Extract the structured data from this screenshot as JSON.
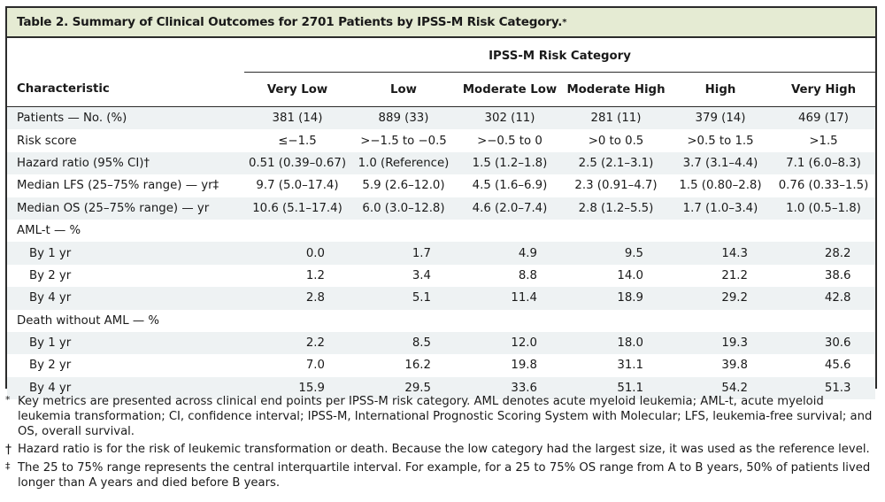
{
  "title": "Table 2. Summary of Clinical Outcomes for 2701 Patients by IPSS-M Risk Category.",
  "title_mark": "*",
  "group_header": "IPSS-M Risk Category",
  "columns": [
    "Characteristic",
    "Very Low",
    "Low",
    "Moderate Low",
    "Moderate High",
    "High",
    "Very High"
  ],
  "rows": [
    {
      "label": "Patients — No. (%)",
      "values": [
        "381 (14)",
        "889 (33)",
        "302 (11)",
        "281 (11)",
        "379 (14)",
        "469 (17)"
      ]
    },
    {
      "label": "Risk score",
      "values": [
        "≤−1.5",
        ">−1.5 to −0.5",
        ">−0.5 to 0",
        ">0 to 0.5",
        ">0.5 to 1.5",
        ">1.5"
      ]
    },
    {
      "label": "Hazard ratio (95% CI)†",
      "values": [
        "0.51 (0.39–0.67)",
        "1.0 (Reference)",
        "1.5 (1.2–1.8)",
        "2.5 (2.1–3.1)",
        "3.7 (3.1–4.4)",
        "7.1 (6.0–8.3)"
      ]
    },
    {
      "label": "Median LFS (25–75% range) — yr‡",
      "values": [
        "9.7 (5.0–17.4)",
        "5.9 (2.6–12.0)",
        "4.5 (1.6–6.9)",
        "2.3 (0.91–4.7)",
        "1.5 (0.80–2.8)",
        "0.76 (0.33–1.5)"
      ]
    },
    {
      "label": "Median OS (25–75% range) — yr",
      "values": [
        "10.6 (5.1–17.4)",
        "6.0 (3.0–12.8)",
        "4.6 (2.0–7.4)",
        "2.8 (1.2–5.5)",
        "1.7 (1.0–3.4)",
        "1.0 (0.5–1.8)"
      ]
    },
    {
      "label": "AML-t — %",
      "values": [
        "",
        "",
        "",
        "",
        "",
        ""
      ]
    },
    {
      "label": "By 1 yr",
      "values": [
        "0.0",
        "1.7",
        "4.9",
        "9.5",
        "14.3",
        "28.2"
      ]
    },
    {
      "label": "By 2 yr",
      "values": [
        "1.2",
        "3.4",
        "8.8",
        "14.0",
        "21.2",
        "38.6"
      ]
    },
    {
      "label": "By 4 yr",
      "values": [
        "2.8",
        "5.1",
        "11.4",
        "18.9",
        "29.2",
        "42.8"
      ]
    },
    {
      "label": "Death without AML — %",
      "values": [
        "",
        "",
        "",
        "",
        "",
        ""
      ]
    },
    {
      "label": "By 1 yr",
      "values": [
        "2.2",
        "8.5",
        "12.0",
        "18.0",
        "19.3",
        "30.6"
      ]
    },
    {
      "label": "By 2 yr",
      "values": [
        "7.0",
        "16.2",
        "19.8",
        "31.1",
        "39.8",
        "45.6"
      ]
    },
    {
      "label": "By 4 yr",
      "values": [
        "15.9",
        "29.5",
        "33.6",
        "51.1",
        "54.2",
        "51.3"
      ]
    }
  ],
  "footnotes": [
    {
      "mark": "*",
      "text": "Key metrics are presented across clinical end points per IPSS-M risk category. AML denotes acute myeloid leukemia; AML-t, acute myeloid leukemia transformation; CI, confidence interval; IPSS-M, International Prognostic Scoring System with Molecular; LFS, leukemia-free survival; and OS, overall survival."
    },
    {
      "mark": "†",
      "text": "Hazard ratio is for the risk of leukemic transformation or death. Because the low category had the largest size, it was used as the reference level."
    },
    {
      "mark": "‡",
      "text": "The 25 to 75% range represents the central interquartile interval. For example, for a 25 to 75% OS range from A to B years, 50% of patients lived longer than A years and died before B years."
    }
  ]
}
